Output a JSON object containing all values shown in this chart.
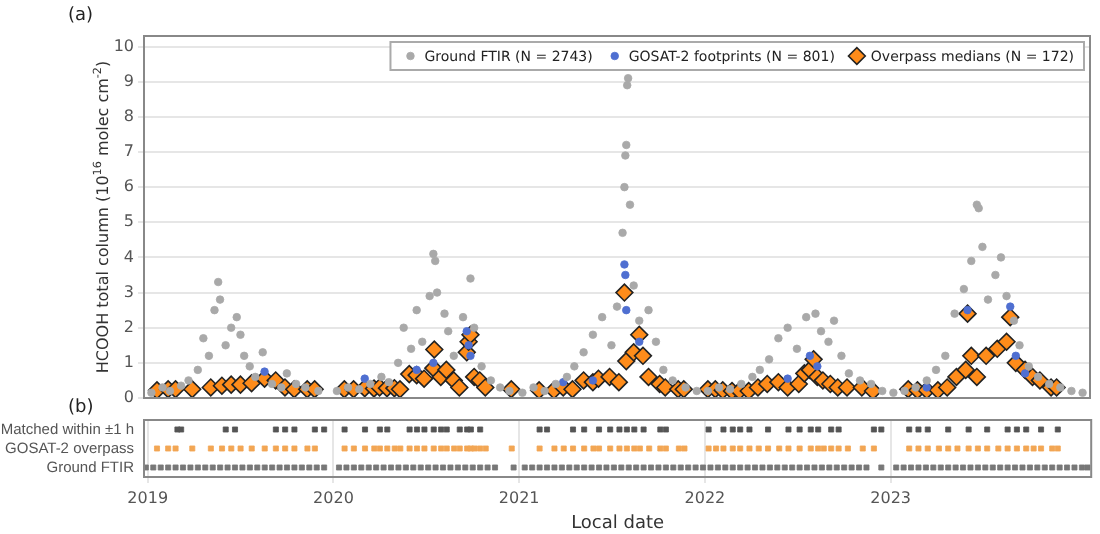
{
  "chart_data": [
    {
      "type": "scatter",
      "title": "(a)",
      "ylabel": "HCOOH total column (10$^{16}$ molec cm$^{-2}$)",
      "xlim": [
        2018.98,
        2024.08
      ],
      "xticks": [
        2019,
        2020,
        2021,
        2022,
        2023
      ],
      "ylim": [
        0,
        10.3
      ],
      "yticks": [
        0,
        1,
        2,
        3,
        4,
        5,
        6,
        7,
        8,
        9,
        10
      ],
      "tick_labels": "y",
      "grid": "y",
      "legend": "top right",
      "series": [
        {
          "name": "Ground FTIR (N = 2743)",
          "color": "#a9a9a9",
          "marker": "circle",
          "x": [
            2019.02,
            2019.08,
            2019.12,
            2019.18,
            2019.22,
            2019.27,
            2019.3,
            2019.33,
            2019.36,
            2019.38,
            2019.39,
            2019.42,
            2019.45,
            2019.48,
            2019.5,
            2019.52,
            2019.55,
            2019.58,
            2019.62,
            2019.67,
            2019.72,
            2019.75,
            2019.8,
            2019.85,
            2019.92,
            2020.02,
            2020.08,
            2020.14,
            2020.2,
            2020.26,
            2020.3,
            2020.35,
            2020.38,
            2020.42,
            2020.45,
            2020.48,
            2020.52,
            2020.54,
            2020.55,
            2020.56,
            2020.6,
            2020.62,
            2020.65,
            2020.7,
            2020.74,
            2020.76,
            2020.8,
            2020.85,
            2020.9,
            2020.95,
            2021.02,
            2021.08,
            2021.14,
            2021.2,
            2021.26,
            2021.3,
            2021.35,
            2021.4,
            2021.45,
            2021.5,
            2021.53,
            2021.56,
            2021.57,
            2021.575,
            2021.58,
            2021.585,
            2021.59,
            2021.6,
            2021.62,
            2021.65,
            2021.7,
            2021.74,
            2021.78,
            2021.83,
            2021.9,
            2021.96,
            2022.02,
            2022.08,
            2022.14,
            2022.2,
            2022.26,
            2022.3,
            2022.35,
            2022.4,
            2022.45,
            2022.5,
            2022.55,
            2022.6,
            2022.63,
            2022.67,
            2022.7,
            2022.74,
            2022.78,
            2022.84,
            2022.9,
            2022.96,
            2023.02,
            2023.08,
            2023.14,
            2023.2,
            2023.25,
            2023.3,
            2023.35,
            2023.4,
            2023.44,
            2023.47,
            2023.48,
            2023.5,
            2023.53,
            2023.57,
            2023.6,
            2023.63,
            2023.67,
            2023.7,
            2023.75,
            2023.8,
            2023.86,
            2023.92,
            2023.98,
            2024.04
          ],
          "values": [
            0.15,
            0.3,
            0.2,
            0.35,
            0.5,
            0.8,
            1.7,
            1.2,
            2.5,
            3.3,
            2.8,
            1.5,
            2.0,
            2.3,
            1.8,
            1.2,
            0.9,
            0.6,
            1.3,
            0.4,
            0.3,
            0.7,
            0.4,
            0.3,
            0.2,
            0.2,
            0.3,
            0.25,
            0.4,
            0.6,
            0.45,
            1.0,
            2.0,
            1.4,
            2.5,
            1.6,
            2.9,
            4.1,
            3.9,
            3.0,
            2.4,
            1.9,
            1.2,
            2.3,
            3.4,
            2.0,
            0.9,
            0.5,
            0.3,
            0.2,
            0.15,
            0.3,
            0.2,
            0.4,
            0.6,
            0.9,
            1.3,
            1.8,
            2.3,
            1.5,
            2.6,
            4.7,
            6.0,
            6.9,
            7.2,
            8.9,
            9.1,
            5.5,
            3.2,
            2.2,
            2.5,
            1.6,
            0.8,
            0.5,
            0.3,
            0.2,
            0.2,
            0.3,
            0.25,
            0.4,
            0.6,
            0.8,
            1.1,
            1.7,
            2.0,
            1.4,
            2.3,
            2.4,
            1.9,
            1.6,
            2.2,
            1.2,
            0.7,
            0.5,
            0.4,
            0.2,
            0.15,
            0.2,
            0.3,
            0.5,
            0.8,
            1.2,
            2.4,
            3.1,
            3.9,
            5.5,
            5.4,
            4.3,
            2.8,
            3.5,
            4.0,
            2.9,
            2.2,
            1.5,
            0.9,
            0.6,
            0.4,
            0.3,
            0.2,
            0.15
          ]
        },
        {
          "name": "GOSAT-2 footprints (N = 801)",
          "color": "#4f6fd1",
          "marker": "circle",
          "x": [
            2019.63,
            2020.17,
            2020.45,
            2020.54,
            2020.72,
            2020.73,
            2020.74,
            2021.24,
            2021.4,
            2021.57,
            2021.575,
            2021.58,
            2021.65,
            2022.2,
            2022.45,
            2022.57,
            2022.61,
            2023.2,
            2023.42,
            2023.65,
            2023.68,
            2023.73
          ],
          "values": [
            0.75,
            0.55,
            0.8,
            1.0,
            1.9,
            1.5,
            1.2,
            0.45,
            0.5,
            3.8,
            3.5,
            2.5,
            1.6,
            null,
            0.55,
            1.2,
            0.9,
            0.3,
            2.5,
            2.6,
            1.2,
            0.7
          ]
        },
        {
          "name": "Overpass medians (N = 172)",
          "color": "#ff8c1a",
          "marker": "diamond",
          "x": [
            2019.05,
            2019.11,
            2019.15,
            2019.24,
            2019.34,
            2019.4,
            2019.45,
            2019.5,
            2019.56,
            2019.63,
            2019.69,
            2019.74,
            2019.79,
            2019.86,
            2019.9,
            2020.06,
            2020.11,
            2020.17,
            2020.22,
            2020.25,
            2020.29,
            2020.33,
            2020.36,
            2020.41,
            2020.45,
            2020.49,
            2020.54,
            2020.545,
            2020.58,
            2020.61,
            2020.65,
            2020.68,
            2020.72,
            2020.73,
            2020.74,
            2020.76,
            2020.79,
            2020.82,
            2020.96,
            2021.11,
            2021.19,
            2021.24,
            2021.29,
            2021.35,
            2021.4,
            2021.43,
            2021.49,
            2021.54,
            2021.57,
            2021.58,
            2021.62,
            2021.65,
            2021.67,
            2021.7,
            2021.76,
            2021.79,
            2021.86,
            2021.89,
            2022.02,
            2022.06,
            2022.1,
            2022.15,
            2022.19,
            2022.24,
            2022.29,
            2022.34,
            2022.4,
            2022.45,
            2022.51,
            2022.54,
            2022.57,
            2022.59,
            2022.61,
            2022.64,
            2022.68,
            2022.72,
            2022.77,
            2022.85,
            2022.91,
            2023.1,
            2023.15,
            2023.2,
            2023.26,
            2023.31,
            2023.36,
            2023.41,
            2023.42,
            2023.44,
            2023.47,
            2023.52,
            2023.58,
            2023.63,
            2023.65,
            2023.68,
            2023.73,
            2023.77,
            2023.81,
            2023.87,
            2023.9
          ],
          "values": [
            0.22,
            0.25,
            0.25,
            0.25,
            0.3,
            0.35,
            0.38,
            0.38,
            0.42,
            0.55,
            0.5,
            0.3,
            0.25,
            0.25,
            0.25,
            0.25,
            0.25,
            0.28,
            0.27,
            0.3,
            0.28,
            0.28,
            0.25,
            0.68,
            0.65,
            0.55,
            0.85,
            1.38,
            0.6,
            0.8,
            0.5,
            0.3,
            1.3,
            1.6,
            1.8,
            0.6,
            0.5,
            0.3,
            0.25,
            0.22,
            0.22,
            0.3,
            0.25,
            0.5,
            0.45,
            0.55,
            0.6,
            0.45,
            3.0,
            1.05,
            1.3,
            1.8,
            1.2,
            0.6,
            0.4,
            0.3,
            0.25,
            0.25,
            0.25,
            0.25,
            0.22,
            0.2,
            0.2,
            0.2,
            0.3,
            0.4,
            0.45,
            0.3,
            0.4,
            0.7,
            0.8,
            1.1,
            0.6,
            0.5,
            0.4,
            0.3,
            0.3,
            0.3,
            0.2,
            0.25,
            0.22,
            0.22,
            0.22,
            0.3,
            0.6,
            0.8,
            2.4,
            1.2,
            0.6,
            1.2,
            1.4,
            1.6,
            2.3,
            1.0,
            0.8,
            0.6,
            0.5,
            0.3,
            0.3
          ]
        }
      ]
    },
    {
      "type": "scatter",
      "title": "(b)",
      "xlabel": "Local date",
      "orientation": "horizontal",
      "xlim": [
        2018.98,
        2024.08
      ],
      "xticks": [
        2019,
        2020,
        2021,
        2022,
        2023
      ],
      "categories": [
        "Matched within ±1 h",
        "GOSAT-2 overpass",
        "Ground FTIR"
      ],
      "grid": "x",
      "series": [
        {
          "color": "#555555",
          "values": [
            2019.16,
            2019.18,
            2019.42,
            2019.47,
            2019.69,
            2019.74,
            2019.79,
            2019.9,
            2019.95,
            2020.06,
            2020.17,
            2020.25,
            2020.29,
            2020.41,
            2020.45,
            2020.49,
            2020.54,
            2020.58,
            2020.61,
            2020.68,
            2020.72,
            2020.74,
            2020.79,
            2021.11,
            2021.15,
            2021.29,
            2021.35,
            2021.43,
            2021.49,
            2021.54,
            2021.58,
            2021.62,
            2021.67,
            2021.76,
            2021.79,
            2022.02,
            2022.1,
            2022.15,
            2022.19,
            2022.24,
            2022.34,
            2022.45,
            2022.51,
            2022.57,
            2022.61,
            2022.68,
            2022.72,
            2022.91,
            2022.95,
            2023.1,
            2023.15,
            2023.2,
            2023.31,
            2023.42,
            2023.52,
            2023.63,
            2023.68,
            2023.73,
            2023.81,
            2023.9
          ],
          "x": [
            "Matched within ±1 h",
            "Matched within ±1 h",
            "Matched within ±1 h",
            "Matched within ±1 h",
            "Matched within ±1 h",
            "Matched within ±1 h",
            "Matched within ±1 h",
            "Matched within ±1 h",
            "Matched within ±1 h",
            "Matched within ±1 h",
            "Matched within ±1 h",
            "Matched within ±1 h",
            "Matched within ±1 h",
            "Matched within ±1 h",
            "Matched within ±1 h",
            "Matched within ±1 h",
            "Matched within ±1 h",
            "Matched within ±1 h",
            "Matched within ±1 h",
            "Matched within ±1 h",
            "Matched within ±1 h",
            "Matched within ±1 h",
            "Matched within ±1 h",
            "Matched within ±1 h",
            "Matched within ±1 h",
            "Matched within ±1 h",
            "Matched within ±1 h",
            "Matched within ±1 h",
            "Matched within ±1 h",
            "Matched within ±1 h",
            "Matched within ±1 h",
            "Matched within ±1 h",
            "Matched within ±1 h",
            "Matched within ±1 h",
            "Matched within ±1 h",
            "Matched within ±1 h",
            "Matched within ±1 h",
            "Matched within ±1 h",
            "Matched within ±1 h",
            "Matched within ±1 h",
            "Matched within ±1 h",
            "Matched within ±1 h",
            "Matched within ±1 h",
            "Matched within ±1 h",
            "Matched within ±1 h",
            "Matched within ±1 h",
            "Matched within ±1 h",
            "Matched within ±1 h",
            "Matched within ±1 h",
            "Matched within ±1 h",
            "Matched within ±1 h",
            "Matched within ±1 h",
            "Matched within ±1 h",
            "Matched within ±1 h",
            "Matched within ±1 h",
            "Matched within ±1 h",
            "Matched within ±1 h",
            "Matched within ±1 h",
            "Matched within ±1 h",
            "Matched within ±1 h"
          ]
        },
        {
          "color": "#f2a654",
          "values": [
            2019.05,
            2019.11,
            2019.15,
            2019.24,
            2019.34,
            2019.4,
            2019.45,
            2019.5,
            2019.56,
            2019.63,
            2019.69,
            2019.74,
            2019.79,
            2019.86,
            2019.9,
            2020.06,
            2020.11,
            2020.17,
            2020.22,
            2020.25,
            2020.29,
            2020.33,
            2020.36,
            2020.41,
            2020.45,
            2020.49,
            2020.54,
            2020.58,
            2020.61,
            2020.65,
            2020.68,
            2020.72,
            2020.74,
            2020.76,
            2020.79,
            2020.82,
            2020.96,
            2021.11,
            2021.19,
            2021.24,
            2021.29,
            2021.35,
            2021.4,
            2021.43,
            2021.49,
            2021.54,
            2021.58,
            2021.62,
            2021.65,
            2021.7,
            2021.76,
            2021.79,
            2021.86,
            2021.89,
            2022.02,
            2022.06,
            2022.1,
            2022.15,
            2022.19,
            2022.24,
            2022.29,
            2022.34,
            2022.4,
            2022.45,
            2022.51,
            2022.57,
            2022.61,
            2022.64,
            2022.68,
            2022.72,
            2022.77,
            2022.85,
            2022.91,
            2023.1,
            2023.15,
            2023.2,
            2023.26,
            2023.31,
            2023.36,
            2023.42,
            2023.47,
            2023.52,
            2023.58,
            2023.63,
            2023.68,
            2023.73,
            2023.77,
            2023.81,
            2023.87,
            2023.9
          ],
          "x": [
            "GOSAT-2 overpass",
            "GOSAT-2 overpass",
            "GOSAT-2 overpass",
            "GOSAT-2 overpass",
            "GOSAT-2 overpass",
            "GOSAT-2 overpass",
            "GOSAT-2 overpass",
            "GOSAT-2 overpass",
            "GOSAT-2 overpass",
            "GOSAT-2 overpass",
            "GOSAT-2 overpass",
            "GOSAT-2 overpass",
            "GOSAT-2 overpass",
            "GOSAT-2 overpass",
            "GOSAT-2 overpass",
            "GOSAT-2 overpass",
            "GOSAT-2 overpass",
            "GOSAT-2 overpass",
            "GOSAT-2 overpass",
            "GOSAT-2 overpass",
            "GOSAT-2 overpass",
            "GOSAT-2 overpass",
            "GOSAT-2 overpass",
            "GOSAT-2 overpass",
            "GOSAT-2 overpass",
            "GOSAT-2 overpass",
            "GOSAT-2 overpass",
            "GOSAT-2 overpass",
            "GOSAT-2 overpass",
            "GOSAT-2 overpass",
            "GOSAT-2 overpass",
            "GOSAT-2 overpass",
            "GOSAT-2 overpass",
            "GOSAT-2 overpass",
            "GOSAT-2 overpass",
            "GOSAT-2 overpass",
            "GOSAT-2 overpass",
            "GOSAT-2 overpass",
            "GOSAT-2 overpass",
            "GOSAT-2 overpass",
            "GOSAT-2 overpass",
            "GOSAT-2 overpass",
            "GOSAT-2 overpass",
            "GOSAT-2 overpass",
            "GOSAT-2 overpass",
            "GOSAT-2 overpass",
            "GOSAT-2 overpass",
            "GOSAT-2 overpass",
            "GOSAT-2 overpass",
            "GOSAT-2 overpass",
            "GOSAT-2 overpass",
            "GOSAT-2 overpass",
            "GOSAT-2 overpass",
            "GOSAT-2 overpass",
            "GOSAT-2 overpass",
            "GOSAT-2 overpass",
            "GOSAT-2 overpass",
            "GOSAT-2 overpass",
            "GOSAT-2 overpass",
            "GOSAT-2 overpass",
            "GOSAT-2 overpass",
            "GOSAT-2 overpass",
            "GOSAT-2 overpass",
            "GOSAT-2 overpass",
            "GOSAT-2 overpass",
            "GOSAT-2 overpass",
            "GOSAT-2 overpass",
            "GOSAT-2 overpass",
            "GOSAT-2 overpass",
            "GOSAT-2 overpass",
            "GOSAT-2 overpass",
            "GOSAT-2 overpass",
            "GOSAT-2 overpass",
            "GOSAT-2 overpass",
            "GOSAT-2 overpass",
            "GOSAT-2 overpass",
            "GOSAT-2 overpass",
            "GOSAT-2 overpass",
            "GOSAT-2 overpass",
            "GOSAT-2 overpass",
            "GOSAT-2 overpass",
            "GOSAT-2 overpass",
            "GOSAT-2 overpass",
            "GOSAT-2 overpass",
            "GOSAT-2 overpass",
            "GOSAT-2 overpass",
            "GOSAT-2 overpass",
            "GOSAT-2 overpass",
            "GOSAT-2 overpass",
            "GOSAT-2 overpass"
          ]
        },
        {
          "color": "#777777",
          "values": [
            2018.99,
            2019.03,
            2019.07,
            2019.11,
            2019.15,
            2019.19,
            2019.23,
            2019.27,
            2019.31,
            2019.35,
            2019.39,
            2019.43,
            2019.47,
            2019.51,
            2019.55,
            2019.59,
            2019.63,
            2019.67,
            2019.71,
            2019.75,
            2019.79,
            2019.83,
            2019.87,
            2019.91,
            2019.95,
            2020.03,
            2020.07,
            2020.11,
            2020.15,
            2020.19,
            2020.23,
            2020.27,
            2020.31,
            2020.35,
            2020.39,
            2020.43,
            2020.47,
            2020.51,
            2020.55,
            2020.59,
            2020.63,
            2020.67,
            2020.71,
            2020.75,
            2020.79,
            2020.83,
            2020.87,
            2020.97,
            2021.03,
            2021.07,
            2021.11,
            2021.15,
            2021.19,
            2021.23,
            2021.27,
            2021.31,
            2021.35,
            2021.39,
            2021.43,
            2021.47,
            2021.51,
            2021.55,
            2021.59,
            2021.63,
            2021.67,
            2021.71,
            2021.75,
            2021.79,
            2021.83,
            2021.87,
            2021.91,
            2021.95,
            2021.99,
            2022.03,
            2022.07,
            2022.11,
            2022.15,
            2022.19,
            2022.23,
            2022.27,
            2022.31,
            2022.35,
            2022.39,
            2022.43,
            2022.47,
            2022.51,
            2022.55,
            2022.59,
            2022.63,
            2022.67,
            2022.71,
            2022.75,
            2022.79,
            2022.83,
            2022.87,
            2022.95,
            2023.03,
            2023.07,
            2023.11,
            2023.15,
            2023.19,
            2023.23,
            2023.27,
            2023.31,
            2023.35,
            2023.39,
            2023.43,
            2023.47,
            2023.51,
            2023.55,
            2023.59,
            2023.63,
            2023.67,
            2023.71,
            2023.75,
            2023.79,
            2023.83,
            2023.87,
            2023.91,
            2023.95,
            2023.99,
            2024.03,
            2024.06
          ],
          "x": [
            "Ground FTIR",
            "Ground FTIR",
            "Ground FTIR",
            "Ground FTIR",
            "Ground FTIR",
            "Ground FTIR",
            "Ground FTIR",
            "Ground FTIR",
            "Ground FTIR",
            "Ground FTIR",
            "Ground FTIR",
            "Ground FTIR",
            "Ground FTIR",
            "Ground FTIR",
            "Ground FTIR",
            "Ground FTIR",
            "Ground FTIR",
            "Ground FTIR",
            "Ground FTIR",
            "Ground FTIR",
            "Ground FTIR",
            "Ground FTIR",
            "Ground FTIR",
            "Ground FTIR",
            "Ground FTIR",
            "Ground FTIR",
            "Ground FTIR",
            "Ground FTIR",
            "Ground FTIR",
            "Ground FTIR",
            "Ground FTIR",
            "Ground FTIR",
            "Ground FTIR",
            "Ground FTIR",
            "Ground FTIR",
            "Ground FTIR",
            "Ground FTIR",
            "Ground FTIR",
            "Ground FTIR",
            "Ground FTIR",
            "Ground FTIR",
            "Ground FTIR",
            "Ground FTIR",
            "Ground FTIR",
            "Ground FTIR",
            "Ground FTIR",
            "Ground FTIR",
            "Ground FTIR",
            "Ground FTIR",
            "Ground FTIR",
            "Ground FTIR",
            "Ground FTIR",
            "Ground FTIR",
            "Ground FTIR",
            "Ground FTIR",
            "Ground FTIR",
            "Ground FTIR",
            "Ground FTIR",
            "Ground FTIR",
            "Ground FTIR",
            "Ground FTIR",
            "Ground FTIR",
            "Ground FTIR",
            "Ground FTIR",
            "Ground FTIR",
            "Ground FTIR",
            "Ground FTIR",
            "Ground FTIR",
            "Ground FTIR",
            "Ground FTIR",
            "Ground FTIR",
            "Ground FTIR",
            "Ground FTIR",
            "Ground FTIR",
            "Ground FTIR",
            "Ground FTIR",
            "Ground FTIR",
            "Ground FTIR",
            "Ground FTIR",
            "Ground FTIR",
            "Ground FTIR",
            "Ground FTIR",
            "Ground FTIR",
            "Ground FTIR",
            "Ground FTIR",
            "Ground FTIR",
            "Ground FTIR",
            "Ground FTIR",
            "Ground FTIR",
            "Ground FTIR",
            "Ground FTIR",
            "Ground FTIR",
            "Ground FTIR",
            "Ground FTIR",
            "Ground FTIR",
            "Ground FTIR",
            "Ground FTIR",
            "Ground FTIR",
            "Ground FTIR",
            "Ground FTIR",
            "Ground FTIR",
            "Ground FTIR",
            "Ground FTIR",
            "Ground FTIR",
            "Ground FTIR",
            "Ground FTIR",
            "Ground FTIR",
            "Ground FTIR",
            "Ground FTIR",
            "Ground FTIR",
            "Ground FTIR",
            "Ground FTIR",
            "Ground FTIR",
            "Ground FTIR",
            "Ground FTIR",
            "Ground FTIR",
            "Ground FTIR",
            "Ground FTIR",
            "Ground FTIR",
            "Ground FTIR",
            "Ground FTIR",
            "Ground FTIR",
            "Ground FTIR"
          ]
        }
      ]
    }
  ]
}
